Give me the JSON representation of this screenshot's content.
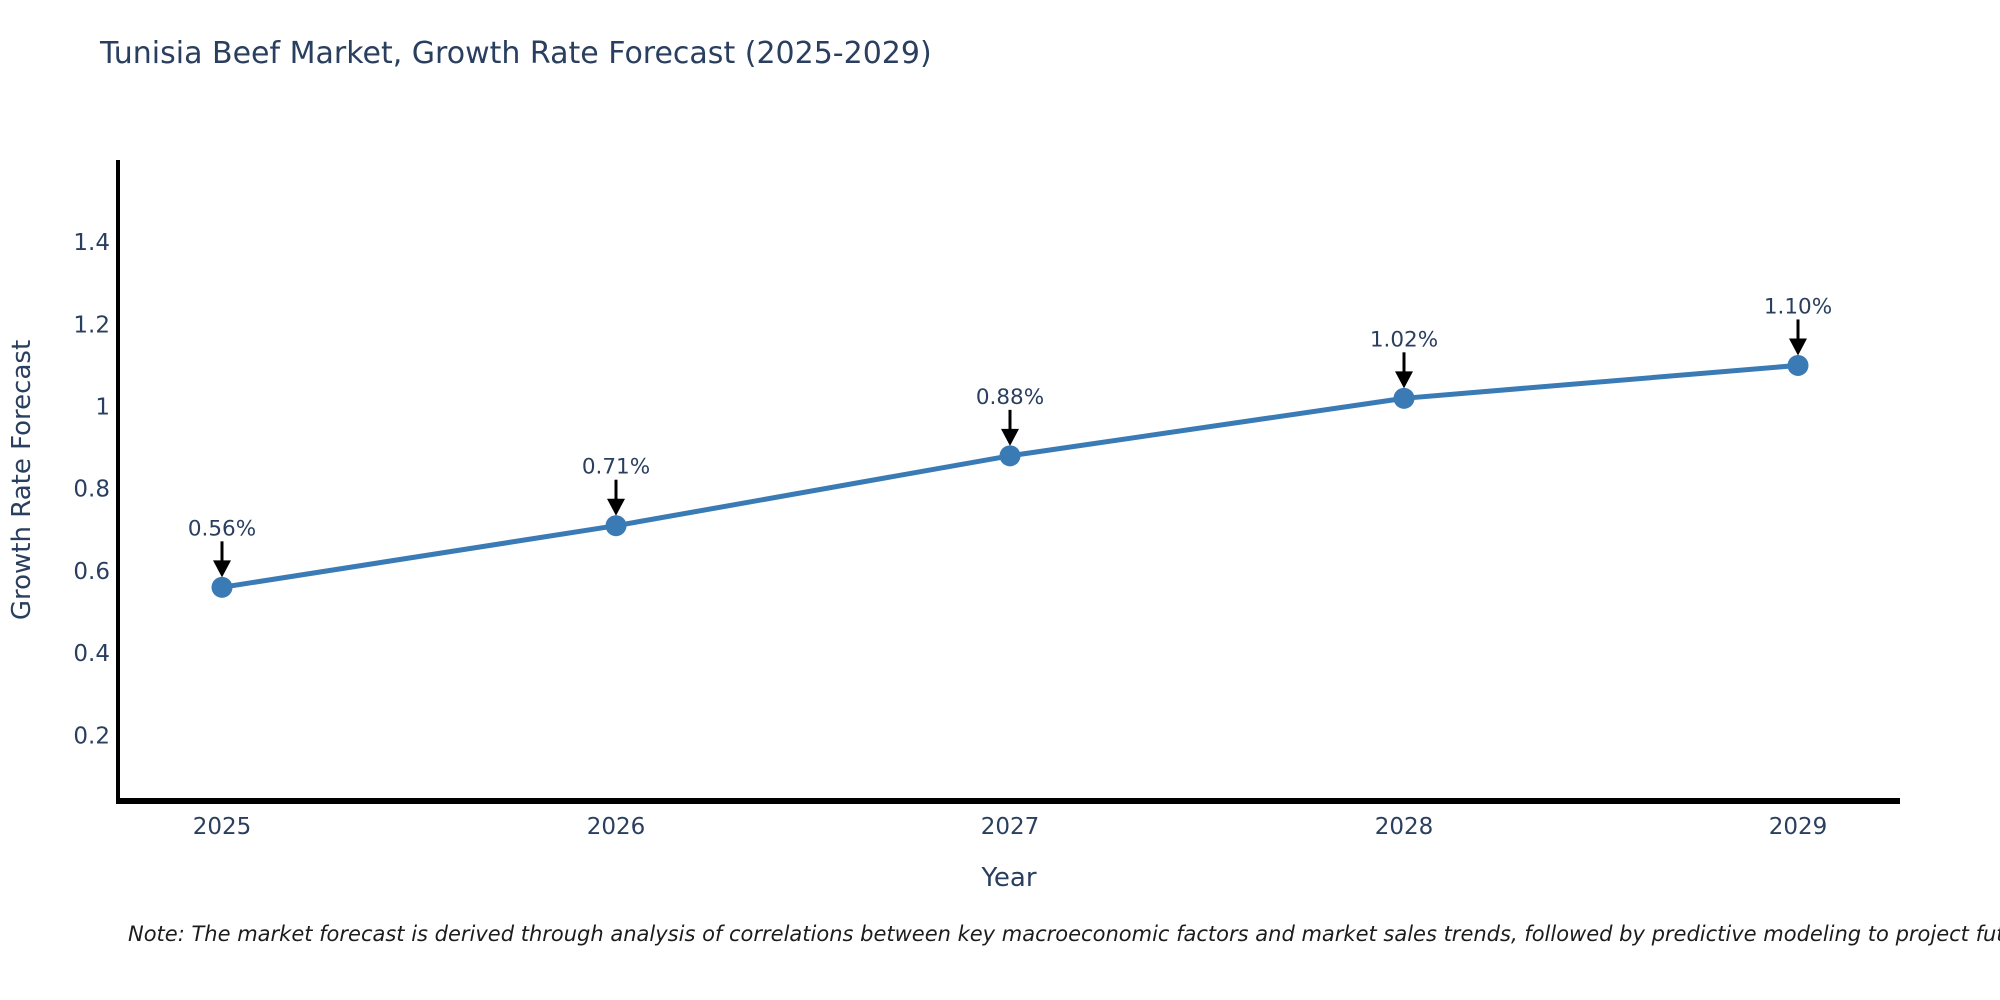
{
  "title": "Tunisia Beef Market, Growth Rate Forecast (2025-2029)",
  "note": "Note: The market forecast is derived through analysis of correlations between key macroeconomic factors and market sales trends, followed by predictive modeling to project future sales",
  "chart_data": {
    "type": "line",
    "title": "Tunisia Beef Market, Growth Rate Forecast (2025-2029)",
    "xlabel": "Year",
    "ylabel": "Growth Rate Forecast",
    "x": [
      2025,
      2026,
      2027,
      2028,
      2029
    ],
    "y": [
      0.56,
      0.71,
      0.88,
      1.02,
      1.1
    ],
    "point_labels": [
      "0.56%",
      "0.71%",
      "0.88%",
      "1.02%",
      "1.10%"
    ],
    "yticks": [
      0.2,
      0.4,
      0.6,
      0.8,
      1,
      1.2,
      1.4
    ],
    "ylim": [
      0.04,
      1.6
    ],
    "grid": false,
    "legend_position": "none",
    "colors": {
      "line": "#3a7bb5",
      "marker": "#3a7bb5",
      "axis_line": "#000000",
      "tick_text": "#2a3f5f",
      "annotation_text": "#2a3f5f",
      "annotation_arrow": "#000000"
    }
  }
}
